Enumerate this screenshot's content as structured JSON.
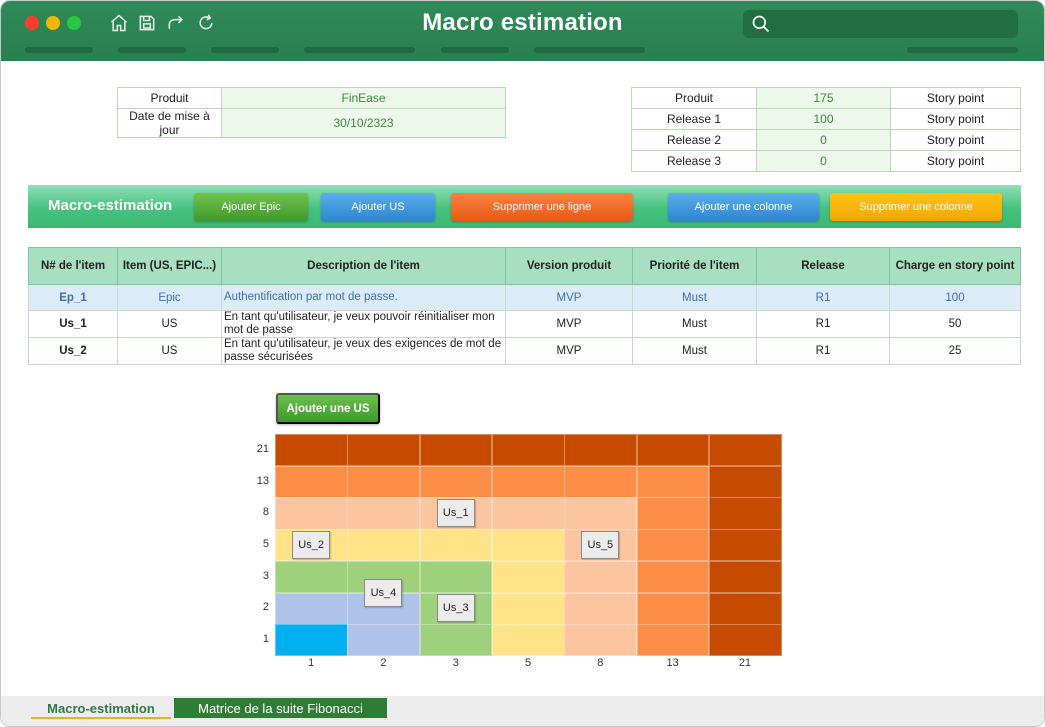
{
  "window": {
    "title": "Macro estimation"
  },
  "toolbar_icons": [
    "home-icon",
    "save-icon",
    "redo-icon",
    "refresh-icon"
  ],
  "info_left": {
    "rows": [
      {
        "label": "Produit",
        "value": "FinEase"
      },
      {
        "label": "Date de mise à jour",
        "value": "30/10/2323"
      }
    ]
  },
  "info_right": {
    "rows": [
      {
        "label": "Produit",
        "value": "175",
        "unit": "Story point"
      },
      {
        "label": "Release 1",
        "value": "100",
        "unit": "Story point"
      },
      {
        "label": "Release 2",
        "value": "0",
        "unit": "Story point"
      },
      {
        "label": "Release 3",
        "value": "0",
        "unit": "Story point"
      }
    ]
  },
  "band": {
    "title": "Macro-estimation",
    "buttons": {
      "add_epic": "Ajouter Epic",
      "add_us": "Ajouter US",
      "delete_row": "Supprimer une ligne",
      "add_column": "Ajouter une colonne",
      "delete_column": "Supprimer une colonne"
    },
    "colors": {
      "green": "#4fae38",
      "blue": "#3f97dc",
      "orange": "#f26a21",
      "yellow": "#f5b400"
    }
  },
  "table": {
    "headers": [
      "N# de l'item",
      "Item (US, EPIC...)",
      "Description de l'item",
      "Version produit",
      "Priorité de l'item",
      "Release",
      "Charge en story point"
    ],
    "rows": [
      {
        "id": "Ep_1",
        "item": "Epic",
        "desc": "Authentification par mot de passe.",
        "version": "MVP",
        "priority": "Must",
        "release": "R1",
        "charge": "100"
      },
      {
        "id": "Us_1",
        "item": "US",
        "desc": "En tant qu'utilisateur, je veux pouvoir réinitialiser mon mot de passe",
        "version": "MVP",
        "priority": "Must",
        "release": "R1",
        "charge": "50"
      },
      {
        "id": "Us_2",
        "item": "US",
        "desc": "En tant qu'utilisateur, je veux des exigences de mot de passe sécurisées",
        "version": "MVP",
        "priority": "Must",
        "release": "R1",
        "charge": "25"
      }
    ]
  },
  "matrix": {
    "add_us_label": "Ajouter une US",
    "x_ticks": [
      "1",
      "2",
      "3",
      "5",
      "8",
      "13",
      "21"
    ],
    "y_ticks": [
      "21",
      "13",
      "8",
      "5",
      "3",
      "2",
      "1"
    ],
    "palette": {
      "dark": "#c64b00",
      "orange": "#fc8d47",
      "peach": "#fdc59f",
      "yellow": "#ffe389",
      "green": "#9fd07c",
      "blue": "#aec3e8",
      "cyan": "#00b0f0"
    },
    "grid": [
      [
        "dark",
        "dark",
        "dark",
        "dark",
        "dark",
        "dark",
        "dark"
      ],
      [
        "orange",
        "orange",
        "orange",
        "orange",
        "orange",
        "orange",
        "dark"
      ],
      [
        "peach",
        "peach",
        "peach",
        "peach",
        "peach",
        "orange",
        "dark"
      ],
      [
        "yellow",
        "yellow",
        "yellow",
        "yellow",
        "peach",
        "orange",
        "dark"
      ],
      [
        "green",
        "green",
        "green",
        "yellow",
        "peach",
        "orange",
        "dark"
      ],
      [
        "blue",
        "blue",
        "green",
        "yellow",
        "peach",
        "orange",
        "dark"
      ],
      [
        "cyan",
        "blue",
        "green",
        "yellow",
        "peach",
        "orange",
        "dark"
      ]
    ],
    "stories": [
      {
        "label": "Us_1",
        "x": "3",
        "y": "8"
      },
      {
        "label": "Us_2",
        "x": "1",
        "y": "5"
      },
      {
        "label": "Us_5",
        "x": "8",
        "y": "5"
      },
      {
        "label": "Us_4",
        "x": "2",
        "y": "2.5"
      },
      {
        "label": "Us_3",
        "x": "3",
        "y": "2"
      }
    ]
  },
  "sheets": {
    "active": "Macro-estimation",
    "other": "Matrice de la suite Fibonacci"
  }
}
